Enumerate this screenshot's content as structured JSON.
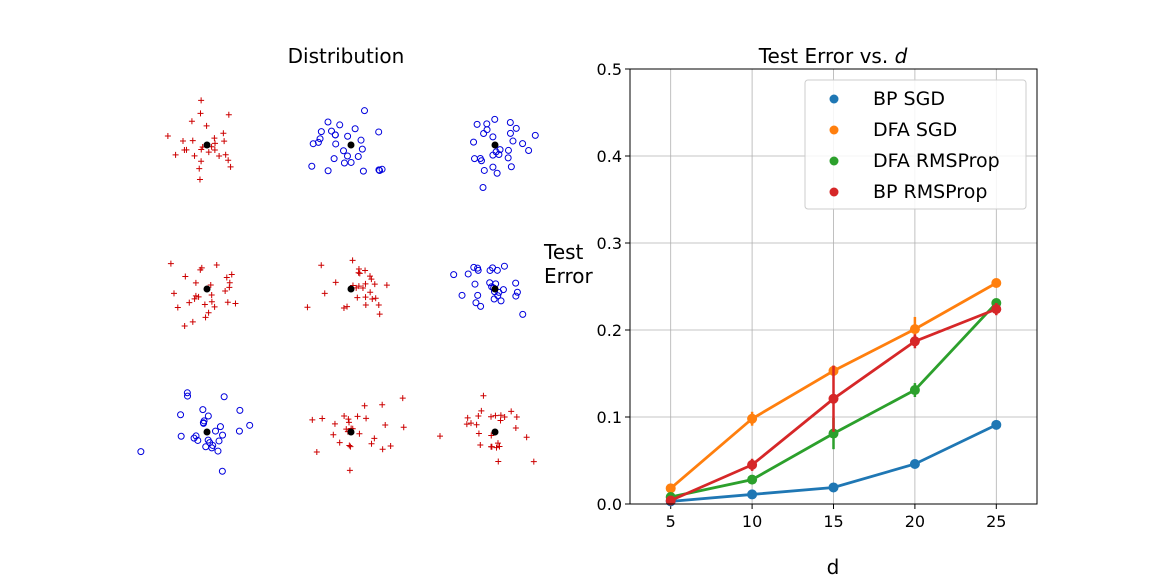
{
  "left_panel": {
    "title": "Distribution",
    "colors": {
      "plus": "#cc0000",
      "circle": "#0000dd",
      "center": "#000000"
    },
    "clusters": [
      {
        "marker": "plus",
        "row": 0,
        "col": 0
      },
      {
        "marker": "circle",
        "row": 0,
        "col": 1
      },
      {
        "marker": "circle",
        "row": 0,
        "col": 2
      },
      {
        "marker": "plus",
        "row": 1,
        "col": 0
      },
      {
        "marker": "plus",
        "row": 1,
        "col": 1
      },
      {
        "marker": "circle",
        "row": 1,
        "col": 2
      },
      {
        "marker": "circle",
        "row": 2,
        "col": 0
      },
      {
        "marker": "plus",
        "row": 2,
        "col": 1
      },
      {
        "marker": "plus",
        "row": 2,
        "col": 2
      }
    ]
  },
  "chart_data": {
    "type": "line",
    "title_prefix": "Test Error vs. ",
    "title_var": "d",
    "xlabel": "d",
    "ylabel_lines": [
      "Test",
      "Error"
    ],
    "xlim": [
      2.5,
      27.5
    ],
    "ylim": [
      0,
      0.5
    ],
    "xticks": [
      5,
      10,
      15,
      20,
      25
    ],
    "yticks": [
      0.0,
      0.1,
      0.2,
      0.3,
      0.4,
      0.5
    ],
    "ytick_labels": [
      "0.0",
      "0.1",
      "0.2",
      "0.3",
      "0.4",
      "0.5"
    ],
    "grid": true,
    "legend_position": "top-right",
    "x": [
      5,
      10,
      15,
      20,
      25
    ],
    "series": [
      {
        "name": "BP SGD",
        "color": "#1f77b4",
        "values": [
          0.003,
          0.011,
          0.019,
          0.046,
          0.091
        ],
        "err": [
          0.001,
          0.002,
          0.003,
          0.005,
          0.004
        ]
      },
      {
        "name": "DFA SGD",
        "color": "#ff7f0e",
        "values": [
          0.018,
          0.098,
          0.153,
          0.201,
          0.254
        ],
        "err": [
          0.002,
          0.008,
          0.006,
          0.014,
          0.004
        ]
      },
      {
        "name": "DFA RMSProp",
        "color": "#2ca02c",
        "values": [
          0.008,
          0.028,
          0.081,
          0.131,
          0.231
        ],
        "err": [
          0.002,
          0.004,
          0.018,
          0.008,
          0.004
        ]
      },
      {
        "name": "BP RMSProp",
        "color": "#d62728",
        "values": [
          0.004,
          0.045,
          0.121,
          0.187,
          0.224
        ],
        "err": [
          0.002,
          0.007,
          0.038,
          0.008,
          0.007
        ]
      }
    ]
  }
}
